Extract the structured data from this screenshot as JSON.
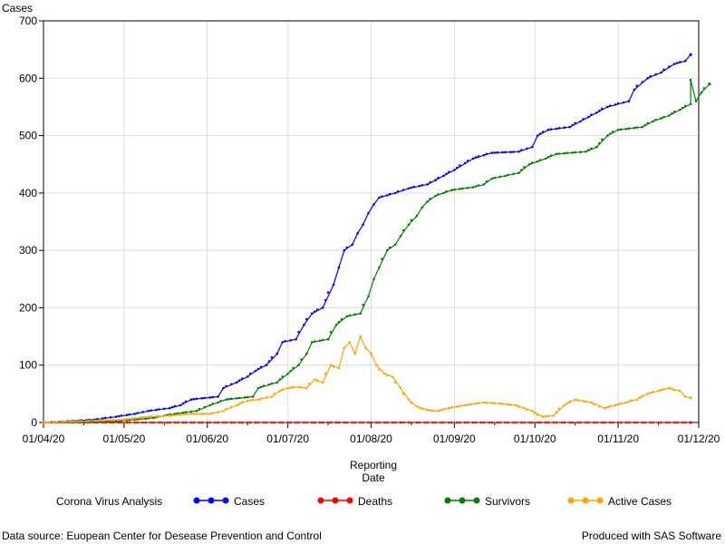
{
  "footer": {
    "source": "Data source: Euopean Center for Desease Prevention and Control",
    "produced": "Produced with SAS Software"
  },
  "chart_data": {
    "type": "line",
    "title": "",
    "ylabel": "Cases",
    "xlabel": [
      "Reporting",
      "Date"
    ],
    "ylim": [
      0,
      700
    ],
    "yticks": [
      0,
      100,
      200,
      300,
      400,
      500,
      600,
      700
    ],
    "xlim": [
      "2020-04-01",
      "2020-12-01"
    ],
    "xticks": [
      "01/04/20",
      "01/05/20",
      "01/06/20",
      "01/07/20",
      "01/08/20",
      "01/09/20",
      "01/10/20",
      "01/11/20",
      "01/12/20"
    ],
    "grid": true,
    "legend": {
      "title": "Corona Virus Analysis",
      "position": "bottom"
    },
    "series": [
      {
        "name": "Cases",
        "color": "#0000ff",
        "points": [
          [
            "2020-04-01",
            0
          ],
          [
            "2020-04-10",
            2
          ],
          [
            "2020-04-20",
            5
          ],
          [
            "2020-04-28",
            10
          ],
          [
            "2020-05-05",
            15
          ],
          [
            "2020-05-10",
            20
          ],
          [
            "2020-05-18",
            25
          ],
          [
            "2020-05-22",
            30
          ],
          [
            "2020-05-26",
            40
          ],
          [
            "2020-06-05",
            45
          ],
          [
            "2020-06-07",
            60
          ],
          [
            "2020-06-12",
            70
          ],
          [
            "2020-06-16",
            80
          ],
          [
            "2020-06-19",
            90
          ],
          [
            "2020-06-23",
            100
          ],
          [
            "2020-06-27",
            120
          ],
          [
            "2020-06-29",
            140
          ],
          [
            "2020-07-04",
            145
          ],
          [
            "2020-07-07",
            170
          ],
          [
            "2020-07-10",
            190
          ],
          [
            "2020-07-14",
            200
          ],
          [
            "2020-07-18",
            240
          ],
          [
            "2020-07-20",
            270
          ],
          [
            "2020-07-22",
            300
          ],
          [
            "2020-07-25",
            310
          ],
          [
            "2020-07-27",
            330
          ],
          [
            "2020-07-29",
            345
          ],
          [
            "2020-07-31",
            365
          ],
          [
            "2020-08-02",
            380
          ],
          [
            "2020-08-04",
            392
          ],
          [
            "2020-08-10",
            400
          ],
          [
            "2020-08-15",
            408
          ],
          [
            "2020-08-22",
            415
          ],
          [
            "2020-08-28",
            430
          ],
          [
            "2020-09-01",
            440
          ],
          [
            "2020-09-08",
            460
          ],
          [
            "2020-09-15",
            470
          ],
          [
            "2020-09-25",
            472
          ],
          [
            "2020-09-30",
            480
          ],
          [
            "2020-10-02",
            500
          ],
          [
            "2020-10-06",
            510
          ],
          [
            "2020-10-14",
            515
          ],
          [
            "2020-10-18",
            525
          ],
          [
            "2020-10-24",
            540
          ],
          [
            "2020-10-28",
            550
          ],
          [
            "2020-11-05",
            560
          ],
          [
            "2020-11-07",
            580
          ],
          [
            "2020-11-12",
            600
          ],
          [
            "2020-11-17",
            610
          ],
          [
            "2020-11-22",
            625
          ],
          [
            "2020-11-26",
            630
          ],
          [
            "2020-11-28",
            641
          ]
        ]
      },
      {
        "name": "Deaths",
        "color": "#ff0000",
        "points": [
          [
            "2020-04-01",
            0
          ],
          [
            "2020-11-28",
            0
          ]
        ]
      },
      {
        "name": "Survivors",
        "color": "#008000",
        "points": [
          [
            "2020-04-01",
            0
          ],
          [
            "2020-04-28",
            2
          ],
          [
            "2020-05-05",
            5
          ],
          [
            "2020-05-12",
            8
          ],
          [
            "2020-05-16",
            12
          ],
          [
            "2020-05-20",
            15
          ],
          [
            "2020-05-28",
            20
          ],
          [
            "2020-06-02",
            30
          ],
          [
            "2020-06-08",
            40
          ],
          [
            "2020-06-18",
            45
          ],
          [
            "2020-06-20",
            60
          ],
          [
            "2020-06-27",
            70
          ],
          [
            "2020-07-01",
            85
          ],
          [
            "2020-07-05",
            100
          ],
          [
            "2020-07-08",
            120
          ],
          [
            "2020-07-10",
            140
          ],
          [
            "2020-07-16",
            145
          ],
          [
            "2020-07-19",
            170
          ],
          [
            "2020-07-23",
            185
          ],
          [
            "2020-07-28",
            190
          ],
          [
            "2020-07-31",
            220
          ],
          [
            "2020-08-02",
            250
          ],
          [
            "2020-08-04",
            270
          ],
          [
            "2020-08-07",
            300
          ],
          [
            "2020-08-10",
            310
          ],
          [
            "2020-08-12",
            325
          ],
          [
            "2020-08-15",
            345
          ],
          [
            "2020-08-18",
            360
          ],
          [
            "2020-08-20",
            375
          ],
          [
            "2020-08-22",
            385
          ],
          [
            "2020-08-25",
            395
          ],
          [
            "2020-08-31",
            405
          ],
          [
            "2020-09-08",
            410
          ],
          [
            "2020-09-12",
            415
          ],
          [
            "2020-09-15",
            425
          ],
          [
            "2020-09-20",
            430
          ],
          [
            "2020-09-25",
            435
          ],
          [
            "2020-09-29",
            450
          ],
          [
            "2020-10-05",
            460
          ],
          [
            "2020-10-09",
            468
          ],
          [
            "2020-10-20",
            472
          ],
          [
            "2020-10-24",
            480
          ],
          [
            "2020-10-28",
            500
          ],
          [
            "2020-11-01",
            510
          ],
          [
            "2020-11-10",
            515
          ],
          [
            "2020-11-14",
            525
          ],
          [
            "2020-11-20",
            535
          ],
          [
            "2020-11-24",
            545
          ],
          [
            "2020-11-28",
            555
          ],
          [
            "2020-11-30",
            560
          ],
          [
            "2020-12-02",
            575
          ],
          [
            "2020-12-05",
            590
          ],
          [
            "2020-11-28",
            597
          ]
        ]
      },
      {
        "name": "Active Cases",
        "color": "#ffa500",
        "points": [
          [
            "2020-04-01",
            0
          ],
          [
            "2020-04-20",
            3
          ],
          [
            "2020-05-01",
            5
          ],
          [
            "2020-05-10",
            10
          ],
          [
            "2020-05-18",
            12
          ],
          [
            "2020-05-26",
            15
          ],
          [
            "2020-06-02",
            15
          ],
          [
            "2020-06-07",
            20
          ],
          [
            "2020-06-12",
            30
          ],
          [
            "2020-06-16",
            38
          ],
          [
            "2020-06-20",
            40
          ],
          [
            "2020-06-25",
            45
          ],
          [
            "2020-06-28",
            55
          ],
          [
            "2020-07-01",
            60
          ],
          [
            "2020-07-05",
            62
          ],
          [
            "2020-07-08",
            60
          ],
          [
            "2020-07-11",
            75
          ],
          [
            "2020-07-14",
            70
          ],
          [
            "2020-07-17",
            100
          ],
          [
            "2020-07-20",
            95
          ],
          [
            "2020-07-22",
            130
          ],
          [
            "2020-07-24",
            140
          ],
          [
            "2020-07-26",
            120
          ],
          [
            "2020-07-28",
            150
          ],
          [
            "2020-07-30",
            130
          ],
          [
            "2020-08-01",
            120
          ],
          [
            "2020-08-03",
            100
          ],
          [
            "2020-08-06",
            85
          ],
          [
            "2020-08-09",
            80
          ],
          [
            "2020-08-12",
            60
          ],
          [
            "2020-08-15",
            40
          ],
          [
            "2020-08-18",
            28
          ],
          [
            "2020-08-22",
            22
          ],
          [
            "2020-08-26",
            20
          ],
          [
            "2020-08-30",
            25
          ],
          [
            "2020-09-05",
            30
          ],
          [
            "2020-09-12",
            35
          ],
          [
            "2020-09-18",
            33
          ],
          [
            "2020-09-24",
            30
          ],
          [
            "2020-09-30",
            20
          ],
          [
            "2020-10-04",
            10
          ],
          [
            "2020-10-08",
            12
          ],
          [
            "2020-10-12",
            30
          ],
          [
            "2020-10-16",
            40
          ],
          [
            "2020-10-22",
            35
          ],
          [
            "2020-10-27",
            25
          ],
          [
            "2020-10-31",
            30
          ],
          [
            "2020-11-04",
            35
          ],
          [
            "2020-11-08",
            40
          ],
          [
            "2020-11-12",
            50
          ],
          [
            "2020-11-16",
            55
          ],
          [
            "2020-11-20",
            60
          ],
          [
            "2020-11-24",
            55
          ],
          [
            "2020-11-26",
            45
          ],
          [
            "2020-11-28",
            43
          ]
        ]
      }
    ]
  }
}
